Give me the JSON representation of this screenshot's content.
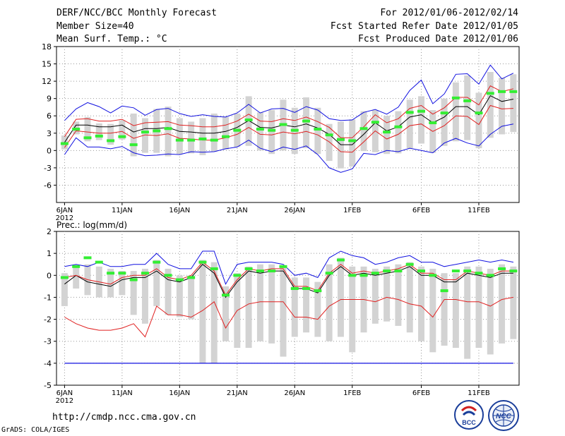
{
  "header": {
    "left": [
      "DERF/NCC/BCC Monthly Forecast",
      "Member Size=40",
      "Mean Surf. Temp.: °C"
    ],
    "right": [
      "For 2012/01/06-2012/02/14",
      "Fcst Started Refer Date 2012/01/05",
      "Fcst Produced Date 2012/01/06"
    ]
  },
  "footer": {
    "url": "http://cmdp.ncc.cma.gov.cn",
    "credit": "GrADS: COLA/IGES",
    "logo_bcc": "BCC",
    "logo_ncc": "NCC"
  },
  "colors": {
    "box": "#d3d3d3",
    "mean": "#000000",
    "spread": "#e02020",
    "range": "#1010e0",
    "member": "#33ee33"
  },
  "chart_data": [
    {
      "type": "line",
      "title": "Mean Surf. Temp.: °C",
      "ylim": [
        -9,
        18
      ],
      "yticks": [
        -6,
        -3,
        0,
        3,
        6,
        9,
        12,
        15,
        18
      ],
      "xlim": [
        0.3,
        40.5
      ],
      "xtick_days": [
        1,
        6,
        11,
        16,
        21,
        26,
        32,
        37
      ],
      "xtick_labels": [
        "6JAN",
        "11JAN",
        "16JAN",
        "21JAN",
        "26JAN",
        "1FEB",
        "6FEB",
        "11FEB"
      ],
      "xtick_year": "2012",
      "series": [
        {
          "name": "mean",
          "values": [
            1.4,
            4.4,
            4.4,
            4.1,
            4.1,
            4.4,
            3.2,
            3.8,
            3.8,
            4.0,
            3.3,
            3.2,
            3.0,
            3.0,
            3.3,
            4.0,
            5.2,
            4.0,
            3.9,
            4.4,
            4.1,
            4.6,
            3.9,
            2.8,
            1.0,
            1.0,
            2.8,
            4.8,
            3.4,
            4.1,
            5.8,
            6.2,
            4.8,
            5.8,
            7.6,
            7.6,
            6.2,
            9.5,
            8.5,
            8.9
          ]
        },
        {
          "name": "upper",
          "values": [
            2.4,
            5.4,
            5.5,
            5.1,
            5.1,
            5.4,
            4.3,
            4.8,
            4.9,
            5.0,
            4.4,
            4.3,
            4.1,
            4.1,
            4.4,
            5.1,
            6.3,
            5.1,
            5.0,
            5.5,
            5.2,
            5.8,
            5.0,
            4.0,
            2.2,
            2.2,
            4.1,
            6.2,
            4.8,
            5.5,
            7.3,
            7.8,
            6.3,
            7.4,
            9.2,
            9.2,
            7.9,
            11.2,
            10.2,
            10.7
          ]
        },
        {
          "name": "lower",
          "values": [
            0.5,
            3.4,
            3.2,
            3.0,
            3.0,
            3.3,
            2.1,
            2.7,
            2.6,
            2.9,
            2.1,
            2.0,
            1.8,
            1.8,
            2.2,
            2.8,
            4.0,
            2.8,
            2.7,
            3.2,
            2.9,
            3.3,
            2.7,
            1.5,
            -0.2,
            -0.3,
            1.5,
            3.4,
            2.0,
            2.8,
            4.3,
            4.6,
            3.3,
            4.3,
            6.0,
            5.9,
            4.5,
            7.8,
            7.2,
            7.3
          ]
        },
        {
          "name": "max",
          "values": [
            5.2,
            7.2,
            8.3,
            7.6,
            6.5,
            7.7,
            7.4,
            6.1,
            7.1,
            7.3,
            6.4,
            5.9,
            6.2,
            5.9,
            5.8,
            6.5,
            8.0,
            6.5,
            7.2,
            7.3,
            6.6,
            7.6,
            7.0,
            5.5,
            5.2,
            5.3,
            6.6,
            7.1,
            6.3,
            7.5,
            10.4,
            12.2,
            8.1,
            9.8,
            13.2,
            13.3,
            11.5,
            14.8,
            12.4,
            13.4
          ]
        },
        {
          "name": "min",
          "values": [
            -0.7,
            2.2,
            0.6,
            0.6,
            0.3,
            0.7,
            -0.4,
            -0.9,
            -0.8,
            -0.6,
            -0.7,
            -0.2,
            -0.3,
            -0.2,
            0.3,
            0.6,
            1.8,
            0.4,
            -0.2,
            0.6,
            0.2,
            0.8,
            -0.7,
            -3.0,
            -3.8,
            -3.2,
            -0.5,
            -0.7,
            0.0,
            -0.2,
            0.4,
            0.0,
            -0.4,
            1.3,
            2.1,
            1.3,
            0.8,
            2.8,
            4.2,
            4.6
          ]
        }
      ],
      "boxes_low": [
        0.2,
        2.8,
        1.6,
        1.8,
        1.0,
        1.9,
        -1.0,
        -0.4,
        -0.4,
        -1.0,
        -0.6,
        -0.5,
        -0.8,
        -0.2,
        0.2,
        0.6,
        0.8,
        0.0,
        -0.6,
        0.0,
        -0.6,
        0.4,
        -0.6,
        -1.8,
        -3.1,
        -2.8,
        -0.1,
        -0.3,
        -0.6,
        -0.5,
        0.4,
        1.2,
        -0.4,
        0.8,
        1.6,
        1.8,
        0.4,
        2.2,
        2.8,
        3.2
      ],
      "boxes_high": [
        2.6,
        5.0,
        5.8,
        4.7,
        4.6,
        5.2,
        6.4,
        5.6,
        7.2,
        7.6,
        5.6,
        5.0,
        5.6,
        6.4,
        5.8,
        6.4,
        9.4,
        6.6,
        7.0,
        8.8,
        7.4,
        9.2,
        7.4,
        4.6,
        5.0,
        5.4,
        6.8,
        7.0,
        6.0,
        6.8,
        8.8,
        9.4,
        7.0,
        9.0,
        11.8,
        13.0,
        10.0,
        13.6,
        12.6,
        13.2
      ],
      "members": [
        1.2,
        3.7,
        2.2,
        2.5,
        1.7,
        2.4,
        1.0,
        3.2,
        3.4,
        3.8,
        1.8,
        1.8,
        2.0,
        1.8,
        2.4,
        3.5,
        5.3,
        3.7,
        3.5,
        4.5,
        3.5,
        5.1,
        3.7,
        2.7,
        1.9,
        1.7,
        3.8,
        4.9,
        3.2,
        4.1,
        6.6,
        6.8,
        4.8,
        6.5,
        9.1,
        8.6,
        6.5,
        9.9,
        10.2,
        10.2
      ]
    },
    {
      "type": "line",
      "title": "Prec.: log(mm/d)",
      "ylim": [
        -5,
        2
      ],
      "yticks": [
        -5,
        -4,
        -3,
        -2,
        -1,
        0,
        1,
        2
      ],
      "xlim": [
        0.3,
        40.5
      ],
      "xtick_days": [
        1,
        6,
        11,
        16,
        21,
        26,
        32,
        37
      ],
      "xtick_labels": [
        "6JAN",
        "11JAN",
        "16JAN",
        "21JAN",
        "26JAN",
        "1FEB",
        "6FEB",
        "11FEB"
      ],
      "xtick_year": "2012",
      "series": [
        {
          "name": "mean",
          "values": [
            -0.4,
            0.0,
            -0.3,
            -0.4,
            -0.5,
            -0.2,
            -0.1,
            -0.1,
            0.2,
            -0.2,
            -0.3,
            -0.1,
            0.5,
            0.1,
            -1.0,
            -0.3,
            0.2,
            0.1,
            0.2,
            0.2,
            -0.6,
            -0.6,
            -0.8,
            0.0,
            0.4,
            0.0,
            0.1,
            0.0,
            0.1,
            0.2,
            0.4,
            0.0,
            0.0,
            -0.3,
            -0.3,
            0.1,
            0.0,
            -0.1,
            0.1,
            0.1
          ]
        },
        {
          "name": "upper",
          "values": [
            -0.1,
            0.0,
            -0.2,
            -0.3,
            -0.4,
            -0.1,
            0.0,
            0.0,
            0.3,
            -0.1,
            -0.2,
            0.0,
            0.6,
            0.2,
            -0.9,
            -0.2,
            0.3,
            0.2,
            0.3,
            0.3,
            -0.5,
            -0.5,
            -0.7,
            0.1,
            0.5,
            0.1,
            0.2,
            0.1,
            0.2,
            0.3,
            0.5,
            0.1,
            0.1,
            -0.2,
            -0.2,
            0.2,
            0.1,
            0.0,
            0.2,
            0.2
          ]
        },
        {
          "name": "lower",
          "values": [
            -1.9,
            -2.2,
            -2.4,
            -2.5,
            -2.5,
            -2.4,
            -2.2,
            -2.8,
            -1.4,
            -1.8,
            -1.8,
            -1.9,
            -1.6,
            -1.2,
            -2.4,
            -1.6,
            -1.3,
            -1.2,
            -1.2,
            -1.2,
            -1.9,
            -1.9,
            -2.0,
            -1.4,
            -1.1,
            -1.1,
            -1.1,
            -1.2,
            -1.0,
            -1.1,
            -1.3,
            -1.4,
            -1.9,
            -1.1,
            -1.1,
            -1.2,
            -1.2,
            -1.4,
            -1.1,
            -1.0
          ]
        },
        {
          "name": "max",
          "values": [
            0.4,
            0.5,
            0.4,
            0.6,
            0.4,
            0.4,
            0.5,
            0.5,
            1.0,
            0.5,
            0.3,
            0.3,
            1.1,
            1.1,
            -0.4,
            0.5,
            0.6,
            0.6,
            0.6,
            0.5,
            0.0,
            0.1,
            -0.1,
            0.8,
            1.1,
            0.9,
            0.8,
            0.5,
            0.6,
            0.8,
            0.9,
            0.6,
            0.6,
            0.4,
            0.5,
            0.6,
            0.7,
            0.6,
            0.7,
            0.6
          ]
        },
        {
          "name": "min",
          "values": [
            -4,
            -4,
            -4,
            -4,
            -4,
            -4,
            -4,
            -4,
            -4,
            -4,
            -4,
            -4,
            -4,
            -4,
            -4,
            -4,
            -4,
            -4,
            -4,
            -4,
            -4,
            -4,
            -4,
            -4,
            -4,
            -4,
            -4,
            -4,
            -4,
            -4,
            -4,
            -4,
            -4,
            -4,
            -4,
            -4,
            -4,
            -4,
            -4,
            -4
          ]
        }
      ],
      "boxes_low": [
        -1.4,
        -0.6,
        -0.9,
        -1.0,
        -1.0,
        -0.9,
        -1.8,
        -2.2,
        -1.4,
        -1.8,
        -1.9,
        -2.0,
        -4.0,
        -4.0,
        -3.0,
        -3.3,
        -3.3,
        -3.0,
        -3.1,
        -3.7,
        -2.8,
        -2.6,
        -2.8,
        -3.0,
        -2.8,
        -3.5,
        -2.6,
        -2.2,
        -2.1,
        -2.3,
        -2.6,
        -3.0,
        -3.5,
        -3.2,
        -3.3,
        -3.8,
        -3.3,
        -3.6,
        -3.1,
        -2.9
      ],
      "boxes_high": [
        0.1,
        0.4,
        0.5,
        0.4,
        0.3,
        0.2,
        0.2,
        0.3,
        0.7,
        0.3,
        0.0,
        0.0,
        0.7,
        0.6,
        -0.5,
        0.1,
        0.4,
        0.5,
        0.5,
        0.4,
        -0.1,
        -0.1,
        -0.3,
        0.5,
        0.8,
        0.4,
        0.4,
        0.3,
        0.4,
        0.5,
        0.6,
        0.4,
        0.3,
        0.1,
        0.1,
        0.4,
        0.4,
        0.3,
        0.5,
        0.4
      ],
      "members": [
        -0.1,
        0.4,
        0.8,
        0.6,
        0.1,
        0.1,
        -0.2,
        0.1,
        0.6,
        0.0,
        -0.2,
        -0.1,
        0.6,
        0.3,
        -0.9,
        0.0,
        0.3,
        0.2,
        0.2,
        0.4,
        -0.6,
        -0.6,
        -0.7,
        0.1,
        0.7,
        0.0,
        0.0,
        0.1,
        0.2,
        0.2,
        0.5,
        0.2,
        0.0,
        -0.7,
        0.2,
        0.2,
        0.1,
        0.0,
        0.3,
        0.2
      ]
    }
  ]
}
